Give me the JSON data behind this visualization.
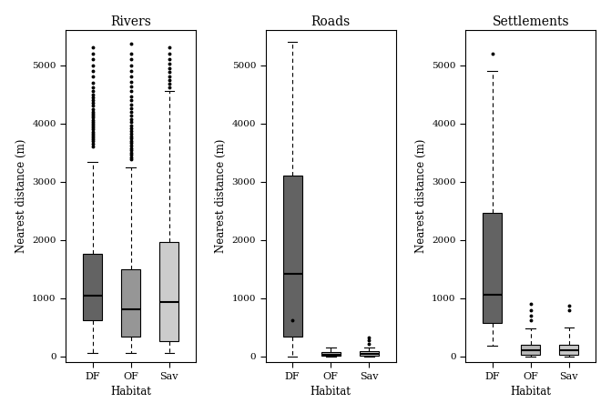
{
  "titles": [
    "Rivers",
    "Roads",
    "Settlements"
  ],
  "xlabel": "Habitat",
  "ylabel": "Nearest distance (m)",
  "categories": [
    "DF",
    "OF",
    "Sav"
  ],
  "ylim": [
    -100,
    5600
  ],
  "yticks": [
    0,
    1000,
    2000,
    3000,
    4000,
    5000
  ],
  "colors": {
    "DF_rivers": "#636363",
    "OF_rivers": "#969696",
    "Sav_rivers": "#cccccc",
    "DF_roads": "#636363",
    "OF_roads": "#969696",
    "Sav_roads": "#c8c8c8",
    "DF_settlements": "#636363",
    "OF_settlements": "#b0b0b0",
    "Sav_settlements": "#c0c0c0"
  },
  "rivers": {
    "DF": {
      "q1": 620,
      "median": 1050,
      "q3": 1760,
      "whislo": 60,
      "whishi": 3340,
      "fliers": [
        3600,
        3650,
        3700,
        3730,
        3760,
        3800,
        3830,
        3860,
        3900,
        3940,
        3970,
        4000,
        4030,
        4060,
        4100,
        4130,
        4160,
        4200,
        4250,
        4300,
        4350,
        4400,
        4450,
        4500,
        4560,
        4620,
        4700,
        4800,
        4900,
        5000,
        5100,
        5200,
        5300
      ]
    },
    "OF": {
      "q1": 340,
      "median": 810,
      "q3": 1500,
      "whislo": 60,
      "whishi": 3250,
      "fliers": [
        3380,
        3420,
        3460,
        3500,
        3540,
        3580,
        3620,
        3660,
        3700,
        3740,
        3780,
        3820,
        3870,
        3920,
        3970,
        4020,
        4080,
        4140,
        4200,
        4260,
        4330,
        4400,
        4470,
        4550,
        4630,
        4710,
        4800,
        4900,
        5000,
        5100,
        5200,
        5370
      ]
    },
    "Sav": {
      "q1": 270,
      "median": 940,
      "q3": 1960,
      "whislo": 60,
      "whishi": 4560,
      "fliers": [
        4620,
        4680,
        4740,
        4810,
        4880,
        4950,
        5030,
        5110,
        5200,
        5310
      ]
    }
  },
  "roads": {
    "DF": {
      "q1": 340,
      "median": 1420,
      "q3": 3100,
      "whislo": 0,
      "whishi": 5400,
      "fliers": [
        620
      ]
    },
    "OF": {
      "q1": 10,
      "median": 30,
      "q3": 80,
      "whislo": 0,
      "whishi": 150,
      "fliers": []
    },
    "Sav": {
      "q1": 10,
      "median": 40,
      "q3": 90,
      "whislo": 0,
      "whishi": 160,
      "fliers": [
        220,
        280,
        320
      ]
    }
  },
  "settlements": {
    "DF": {
      "q1": 580,
      "median": 1060,
      "q3": 2460,
      "whislo": 180,
      "whishi": 4900,
      "fliers": [
        5200
      ]
    },
    "OF": {
      "q1": 30,
      "median": 110,
      "q3": 200,
      "whislo": 0,
      "whishi": 480,
      "fliers": [
        620,
        700,
        800,
        900
      ]
    },
    "Sav": {
      "q1": 30,
      "median": 110,
      "q3": 210,
      "whislo": 0,
      "whishi": 500,
      "fliers": [
        800,
        870
      ]
    }
  }
}
